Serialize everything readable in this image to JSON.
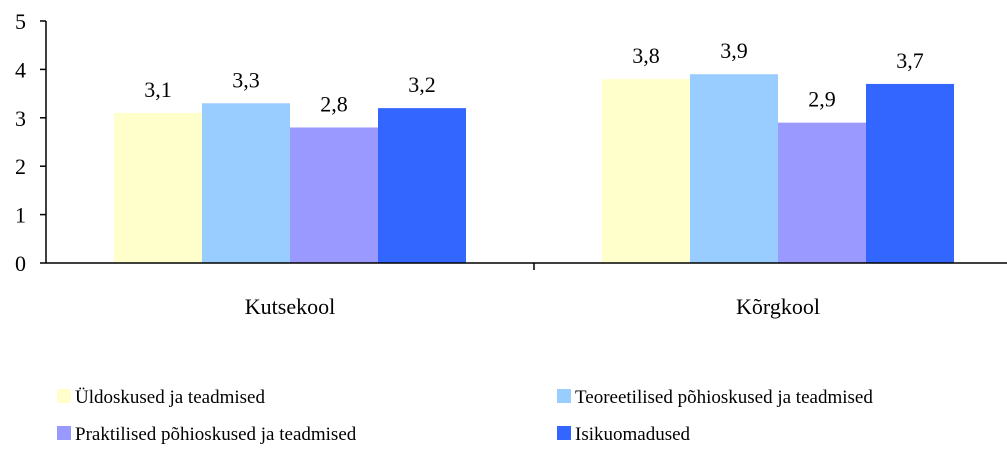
{
  "chart_data": {
    "type": "bar",
    "categories": [
      "Kutsekool",
      "Kõrgkool"
    ],
    "series": [
      {
        "name": "Üldoskused ja teadmised",
        "values": [
          3.1,
          3.8
        ],
        "labels": [
          "3,1",
          "3,8"
        ],
        "color": "#FFFFCC"
      },
      {
        "name": "Teoreetilised põhioskused ja teadmised",
        "values": [
          3.3,
          3.9
        ],
        "labels": [
          "3,3",
          "3,9"
        ],
        "color": "#99CCFF"
      },
      {
        "name": "Praktilised põhioskused ja teadmised",
        "values": [
          2.8,
          2.9
        ],
        "labels": [
          "2,8",
          "2,9"
        ],
        "color": "#9999FF"
      },
      {
        "name": "Isikuomadused",
        "values": [
          3.2,
          3.7
        ],
        "labels": [
          "3,2",
          "3,7"
        ],
        "color": "#3366FF"
      }
    ],
    "yticks": [
      "0",
      "1",
      "2",
      "3",
      "4",
      "5"
    ],
    "ylim": [
      0,
      5
    ],
    "grid": false,
    "legend_position": "bottom",
    "title": "",
    "xlabel": "",
    "ylabel": ""
  }
}
